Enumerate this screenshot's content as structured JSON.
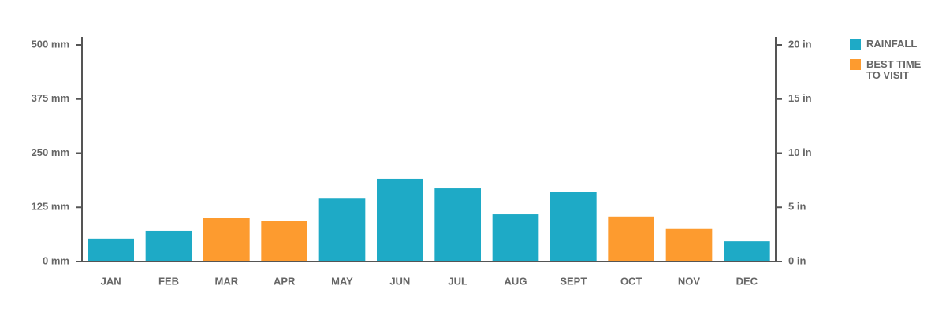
{
  "chart_data": {
    "type": "bar",
    "categories": [
      "JAN",
      "FEB",
      "MAR",
      "APR",
      "MAY",
      "JUN",
      "JUL",
      "AUG",
      "SEPT",
      "OCT",
      "NOV",
      "DEC"
    ],
    "series": [
      {
        "name": "RAINFALL",
        "color": "#1eaac6",
        "values": [
          53,
          71,
          null,
          null,
          145,
          191,
          169,
          109,
          160,
          null,
          null,
          47
        ]
      },
      {
        "name": "BEST TIME TO VISIT",
        "color": "#fd9b2f",
        "values": [
          null,
          null,
          100,
          93,
          null,
          null,
          null,
          null,
          null,
          104,
          75,
          null
        ]
      }
    ],
    "ylim": [
      0,
      500
    ],
    "yticks": [
      {
        "value": 0,
        "label": "0 mm"
      },
      {
        "value": 125,
        "label": "125 mm"
      },
      {
        "value": 250,
        "label": "250 mm"
      },
      {
        "value": 375,
        "label": "375 mm"
      },
      {
        "value": 500,
        "label": "500 mm"
      }
    ],
    "y2lim": [
      0,
      20
    ],
    "y2ticks": [
      {
        "value": 0,
        "label": "0 in"
      },
      {
        "value": 5,
        "label": "5 in"
      },
      {
        "value": 10,
        "label": "10 in"
      },
      {
        "value": 15,
        "label": "15 in"
      },
      {
        "value": 20,
        "label": "20 in"
      }
    ],
    "legend": "top-right"
  }
}
